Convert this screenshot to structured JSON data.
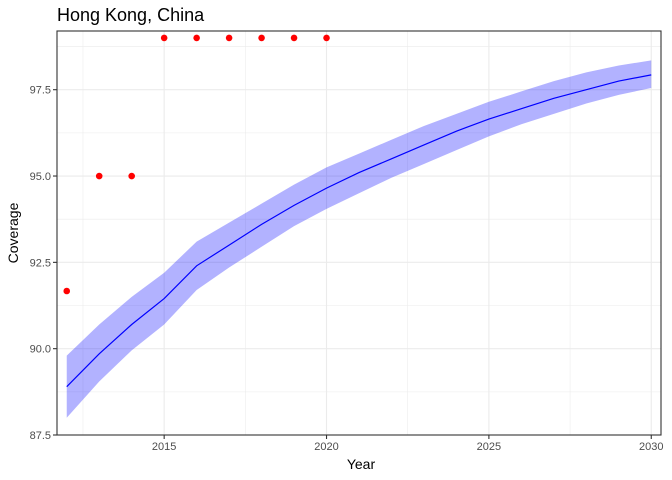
{
  "chart_data": {
    "type": "line",
    "title": "Hong Kong, China",
    "xlabel": "Year",
    "ylabel": "Coverage",
    "xlim": [
      2011.7,
      2030.3
    ],
    "ylim": [
      87.5,
      99.2
    ],
    "x_ticks": [
      2015,
      2020,
      2025,
      2030
    ],
    "y_ticks": [
      87.5,
      90.0,
      92.5,
      95.0,
      97.5
    ],
    "x_tick_labels": [
      "2015",
      "2020",
      "2025",
      "2030"
    ],
    "y_tick_labels": [
      "87.5",
      "90.0",
      "92.5",
      "95.0",
      "97.5"
    ],
    "grid": true,
    "background": "#ffffff",
    "grid_color": "#ebebeb",
    "panel_border_color": "#333333",
    "series": [
      {
        "type": "line",
        "color": "#0000ff",
        "x": [
          2012,
          2013,
          2014,
          2015,
          2016,
          2017,
          2018,
          2019,
          2020,
          2021,
          2022,
          2023,
          2024,
          2025,
          2026,
          2027,
          2028,
          2029,
          2030
        ],
        "y": [
          88.9,
          89.85,
          90.7,
          91.45,
          92.4,
          93.0,
          93.6,
          94.15,
          94.65,
          95.1,
          95.5,
          95.9,
          96.3,
          96.65,
          96.95,
          97.25,
          97.5,
          97.75,
          97.93
        ]
      },
      {
        "type": "band",
        "color": "#0000ff",
        "opacity": 0.3,
        "x": [
          2012,
          2013,
          2014,
          2015,
          2016,
          2017,
          2018,
          2019,
          2020,
          2021,
          2022,
          2023,
          2024,
          2025,
          2026,
          2027,
          2028,
          2029,
          2030
        ],
        "lower": [
          88.0,
          89.05,
          89.95,
          90.7,
          91.7,
          92.35,
          92.95,
          93.55,
          94.05,
          94.5,
          94.95,
          95.35,
          95.75,
          96.15,
          96.5,
          96.8,
          97.1,
          97.35,
          97.55
        ],
        "upper": [
          89.8,
          90.7,
          91.5,
          92.2,
          93.1,
          93.65,
          94.2,
          94.75,
          95.25,
          95.65,
          96.05,
          96.45,
          96.8,
          97.15,
          97.45,
          97.75,
          98.0,
          98.2,
          98.35
        ]
      },
      {
        "type": "scatter",
        "color": "#ff0000",
        "x": [
          2012,
          2013,
          2014,
          2015,
          2016,
          2017,
          2018,
          2019,
          2020
        ],
        "y": [
          91.67,
          95.0,
          95.0,
          99.0,
          99.0,
          99.0,
          99.0,
          99.0,
          99.0
        ]
      }
    ]
  }
}
